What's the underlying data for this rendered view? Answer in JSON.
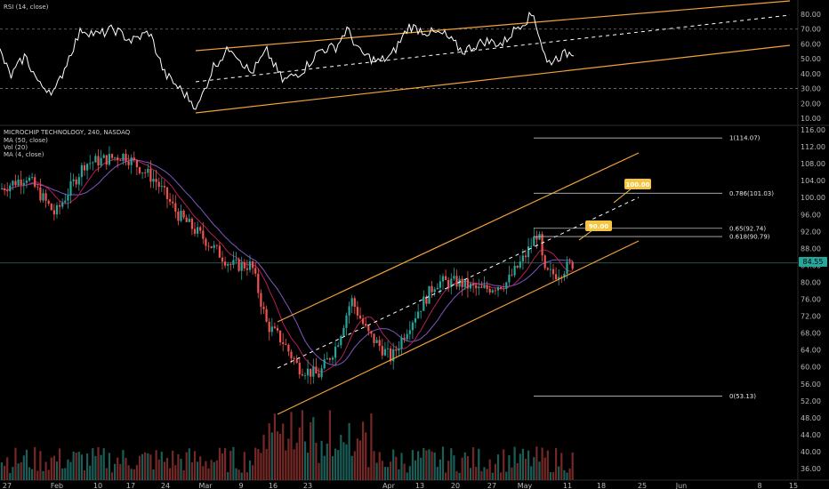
{
  "rsi_panel": {
    "legend": "RSI (14, close)",
    "ticks": [
      "80.00",
      "70.00",
      "60.00",
      "50.00",
      "40.00",
      "30.00",
      "20.00",
      "10.00"
    ],
    "ref_lines": [
      70,
      30
    ]
  },
  "price_panel": {
    "legend": [
      "MICROCHIP TECHNOLOGY, 240, NASDAQ",
      "MA (50, close)",
      "Vol (20)",
      "MA (4, close)"
    ],
    "ticks": [
      "116.00",
      "112.00",
      "108.00",
      "104.00",
      "100.00",
      "96.00",
      "92.00",
      "88.00",
      "84.00",
      "80.00",
      "76.00",
      "72.00",
      "68.00",
      "64.00",
      "60.00",
      "56.00",
      "52.00",
      "48.00",
      "44.00",
      "40.00",
      "36.00"
    ],
    "last_price": "84.55",
    "fib": [
      {
        "label": "1(114.07)",
        "value": 114.07
      },
      {
        "label": "0.786(101.03)",
        "value": 101.03
      },
      {
        "label": "0.65(92.74)",
        "value": 92.74
      },
      {
        "label": "0.618(90.79)",
        "value": 90.79
      },
      {
        "label": "0(53.13)",
        "value": 53.13
      }
    ],
    "targets": [
      {
        "label": "100.00",
        "value": 100.0
      },
      {
        "label": "90.00",
        "value": 90.0
      }
    ]
  },
  "x_axis": {
    "ticks": [
      "27",
      "Feb",
      "10",
      "17",
      "24",
      "Mar",
      "9",
      "16",
      "23",
      "Apr",
      "13",
      "20",
      "27",
      "May",
      "11",
      "18",
      "25",
      "Jun",
      "8",
      "15"
    ]
  },
  "colors": {
    "channel": "#f2a23a",
    "up": "#26a69a",
    "down": "#ef5350",
    "ma50": "#7e57c2",
    "ma_short": "#b71c5a",
    "rsi": "#ffffff",
    "label_bg": "#f5c542"
  },
  "chart_data": {
    "type": "candlestick",
    "title": "MICROCHIP TECHNOLOGY, 240, NASDAQ",
    "ylim": [
      34,
      118
    ],
    "rsi_ylim": [
      8,
      86
    ],
    "anchors": [
      {
        "x": "Jan 27",
        "close": 105
      },
      {
        "x": "Feb 10",
        "close": 108
      },
      {
        "x": "Feb 17",
        "close": 110
      },
      {
        "x": "Feb 24",
        "close": 104
      },
      {
        "x": "Mar 2",
        "close": 92
      },
      {
        "x": "Mar 9",
        "close": 84
      },
      {
        "x": "Mar 16",
        "close": 60
      },
      {
        "x": "Mar 23",
        "close": 64
      },
      {
        "x": "Apr 1",
        "close": 68
      },
      {
        "x": "Apr 13",
        "close": 82
      },
      {
        "x": "Apr 20",
        "close": 80
      },
      {
        "x": "Apr 27",
        "close": 90
      },
      {
        "x": "May 1",
        "close": 83
      },
      {
        "x": "May 5",
        "close": 84.55
      }
    ]
  }
}
